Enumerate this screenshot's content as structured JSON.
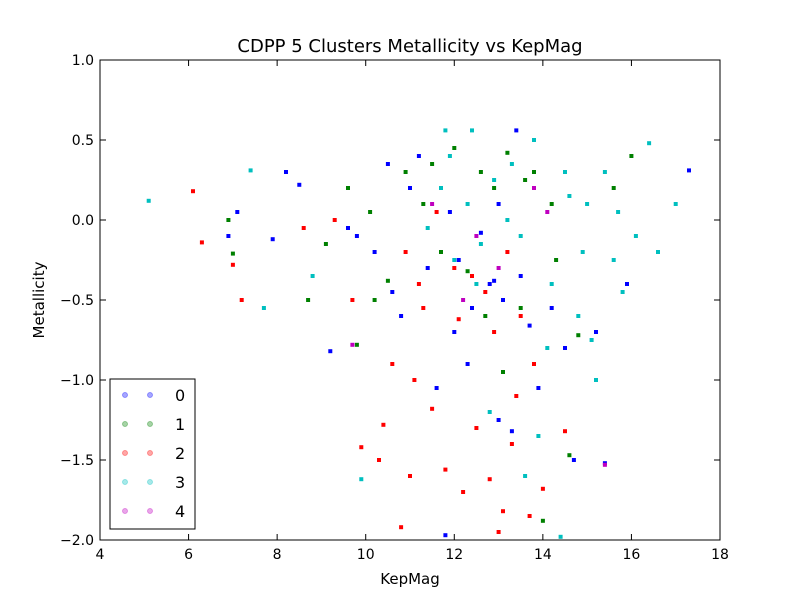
{
  "chart_data": {
    "type": "scatter",
    "title": "CDPP 5 Clusters Metallicity vs KepMag",
    "xlabel": "KepMag",
    "ylabel": "Metallicity",
    "xlim": [
      4,
      18
    ],
    "ylim": [
      -2.0,
      1.0
    ],
    "xticks": [
      4,
      6,
      8,
      10,
      12,
      14,
      16,
      18
    ],
    "xtick_labels": [
      "4",
      "6",
      "8",
      "10",
      "12",
      "14",
      "16",
      "18"
    ],
    "yticks": [
      -2.0,
      -1.5,
      -1.0,
      -0.5,
      0.0,
      0.5,
      1.0
    ],
    "ytick_labels": [
      "−2.0",
      "−1.5",
      "−1.0",
      "−0.5",
      "0.0",
      "0.5",
      "1.0"
    ],
    "grid": false,
    "legend_position": "lower-left",
    "series": [
      {
        "name": "0",
        "color": "#0000ff",
        "points": [
          [
            7.1,
            0.05
          ],
          [
            6.9,
            -0.1
          ],
          [
            7.9,
            -0.12
          ],
          [
            8.2,
            0.3
          ],
          [
            8.5,
            0.22
          ],
          [
            9.2,
            -0.82
          ],
          [
            9.6,
            -0.05
          ],
          [
            10.2,
            -0.2
          ],
          [
            10.8,
            -0.6
          ],
          [
            11.2,
            0.4
          ],
          [
            11.4,
            -0.3
          ],
          [
            11.6,
            -1.05
          ],
          [
            11.8,
            -1.97
          ],
          [
            12.0,
            -0.7
          ],
          [
            12.4,
            -0.55
          ],
          [
            12.6,
            -0.08
          ],
          [
            12.8,
            -0.4
          ],
          [
            13.0,
            0.1
          ],
          [
            13.3,
            -1.32
          ],
          [
            13.5,
            -0.35
          ],
          [
            13.7,
            -0.66
          ],
          [
            13.9,
            -1.05
          ],
          [
            14.2,
            -0.55
          ],
          [
            14.5,
            -0.8
          ],
          [
            14.7,
            -1.5
          ],
          [
            15.2,
            -0.7
          ],
          [
            15.4,
            -1.52
          ],
          [
            15.9,
            -0.4
          ],
          [
            17.3,
            0.31
          ],
          [
            13.0,
            -1.25
          ],
          [
            12.3,
            -0.9
          ],
          [
            11.0,
            0.2
          ],
          [
            10.5,
            0.35
          ],
          [
            9.8,
            -0.1
          ],
          [
            13.4,
            0.56
          ],
          [
            12.9,
            -0.38
          ],
          [
            11.9,
            0.05
          ],
          [
            12.1,
            -0.25
          ],
          [
            13.1,
            -0.5
          ],
          [
            10.6,
            -0.45
          ]
        ]
      },
      {
        "name": "1",
        "color": "#008000",
        "points": [
          [
            6.9,
            0.0
          ],
          [
            7.0,
            -0.21
          ],
          [
            8.7,
            -0.5
          ],
          [
            9.1,
            -0.15
          ],
          [
            9.6,
            0.2
          ],
          [
            9.8,
            -0.78
          ],
          [
            10.1,
            0.05
          ],
          [
            10.5,
            -0.38
          ],
          [
            10.9,
            0.3
          ],
          [
            11.3,
            0.1
          ],
          [
            11.7,
            -0.2
          ],
          [
            12.0,
            0.45
          ],
          [
            12.3,
            -0.32
          ],
          [
            12.6,
            0.3
          ],
          [
            12.9,
            0.2
          ],
          [
            13.2,
            0.42
          ],
          [
            13.5,
            -0.55
          ],
          [
            13.8,
            0.3
          ],
          [
            14.0,
            -1.88
          ],
          [
            14.3,
            -0.25
          ],
          [
            14.6,
            -1.47
          ],
          [
            14.8,
            -0.72
          ],
          [
            15.6,
            0.2
          ],
          [
            16.0,
            0.4
          ],
          [
            13.1,
            -0.95
          ],
          [
            14.2,
            0.1
          ],
          [
            11.5,
            0.35
          ],
          [
            12.7,
            -0.6
          ],
          [
            10.2,
            -0.5
          ],
          [
            13.6,
            0.25
          ]
        ]
      },
      {
        "name": "2",
        "color": "#ff0000",
        "points": [
          [
            6.1,
            0.18
          ],
          [
            6.3,
            -0.14
          ],
          [
            7.0,
            -0.28
          ],
          [
            7.2,
            -0.5
          ],
          [
            8.6,
            -0.05
          ],
          [
            9.3,
            0.0
          ],
          [
            9.7,
            -0.5
          ],
          [
            9.9,
            -1.42
          ],
          [
            10.3,
            -1.5
          ],
          [
            10.6,
            -0.9
          ],
          [
            10.8,
            -1.92
          ],
          [
            11.0,
            -1.6
          ],
          [
            11.2,
            -0.4
          ],
          [
            11.5,
            -1.18
          ],
          [
            11.8,
            -1.56
          ],
          [
            12.0,
            -0.3
          ],
          [
            12.2,
            -1.7
          ],
          [
            12.5,
            -1.3
          ],
          [
            12.7,
            -0.45
          ],
          [
            12.8,
            -1.62
          ],
          [
            13.0,
            -1.95
          ],
          [
            13.1,
            -1.82
          ],
          [
            13.2,
            -0.2
          ],
          [
            13.3,
            -1.4
          ],
          [
            13.5,
            -0.6
          ],
          [
            13.7,
            -1.85
          ],
          [
            14.0,
            -1.68
          ],
          [
            14.5,
            -1.32
          ],
          [
            11.3,
            -0.55
          ],
          [
            12.4,
            -0.35
          ],
          [
            10.9,
            -0.2
          ],
          [
            11.6,
            0.05
          ],
          [
            12.9,
            -0.7
          ],
          [
            13.8,
            -0.9
          ],
          [
            10.4,
            -1.28
          ],
          [
            11.1,
            -1.0
          ],
          [
            12.1,
            -0.62
          ],
          [
            13.4,
            -1.1
          ]
        ]
      },
      {
        "name": "3",
        "color": "#00bfbf",
        "points": [
          [
            5.1,
            0.12
          ],
          [
            7.4,
            0.31
          ],
          [
            7.7,
            -0.55
          ],
          [
            8.8,
            -0.35
          ],
          [
            9.9,
            -1.62
          ],
          [
            11.8,
            0.56
          ],
          [
            12.4,
            0.56
          ],
          [
            13.6,
            -1.6
          ],
          [
            14.4,
            -1.98
          ],
          [
            14.8,
            -0.6
          ],
          [
            15.2,
            -1.0
          ],
          [
            15.6,
            -0.25
          ],
          [
            16.1,
            -0.1
          ],
          [
            16.4,
            0.48
          ],
          [
            17.0,
            0.1
          ],
          [
            15.0,
            0.1
          ],
          [
            14.5,
            0.3
          ],
          [
            14.2,
            -0.4
          ],
          [
            13.8,
            0.5
          ],
          [
            13.5,
            -0.1
          ],
          [
            13.2,
            0.0
          ],
          [
            12.9,
            0.25
          ],
          [
            12.6,
            -0.15
          ],
          [
            12.3,
            0.1
          ],
          [
            12.0,
            -0.25
          ],
          [
            11.7,
            0.2
          ],
          [
            11.4,
            -0.05
          ],
          [
            14.9,
            -0.2
          ],
          [
            15.4,
            0.3
          ],
          [
            15.8,
            -0.45
          ],
          [
            14.1,
            -0.8
          ],
          [
            13.9,
            -1.35
          ],
          [
            12.8,
            -1.2
          ],
          [
            16.6,
            -0.2
          ],
          [
            15.7,
            0.05
          ],
          [
            14.6,
            0.15
          ],
          [
            13.3,
            0.35
          ],
          [
            12.5,
            -0.4
          ],
          [
            11.9,
            0.4
          ],
          [
            15.1,
            -0.75
          ]
        ]
      },
      {
        "name": "4",
        "color": "#bf00bf",
        "points": [
          [
            9.7,
            -0.78
          ],
          [
            15.4,
            -1.53
          ],
          [
            14.1,
            0.05
          ],
          [
            12.5,
            -0.1
          ],
          [
            13.0,
            -0.3
          ],
          [
            11.5,
            0.1
          ],
          [
            13.8,
            0.2
          ],
          [
            12.2,
            -0.5
          ]
        ]
      }
    ]
  }
}
